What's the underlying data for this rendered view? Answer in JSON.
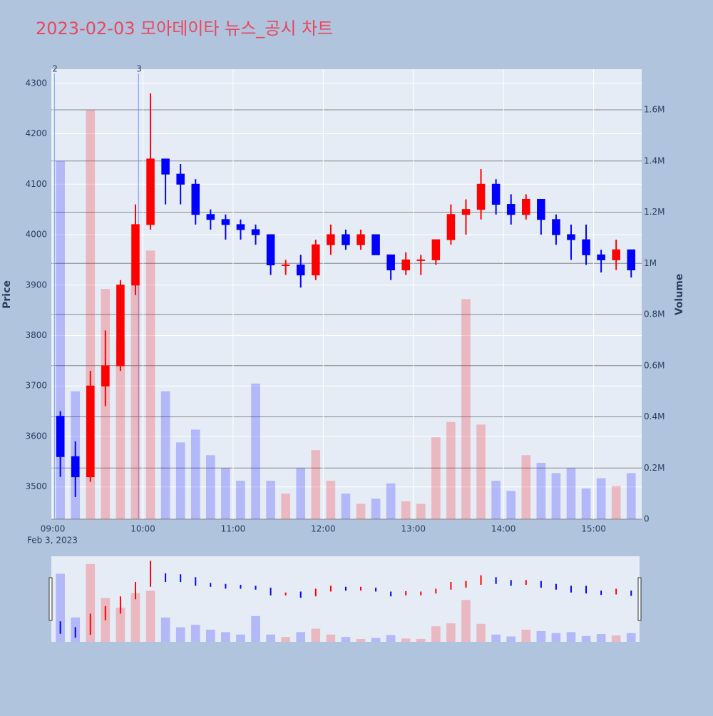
{
  "chart_data": {
    "type": "candlestick",
    "title": "2023-02-03 모아데이타 뉴스_공시 차트",
    "y_label": "Price",
    "y2_label": "Volume",
    "x_date_label": "Feb 3, 2023",
    "increasing_color": "#ff0000",
    "decreasing_color": "#0000ff",
    "x": [
      "09:00",
      "09:10",
      "09:20",
      "09:30",
      "09:40",
      "09:50",
      "10:00",
      "10:10",
      "10:20",
      "10:30",
      "10:40",
      "10:50",
      "11:00",
      "11:10",
      "11:20",
      "11:30",
      "11:40",
      "11:50",
      "12:00",
      "12:10",
      "12:20",
      "12:30",
      "12:40",
      "12:50",
      "13:00",
      "13:10",
      "13:20",
      "13:30",
      "13:40",
      "13:50",
      "14:00",
      "14:10",
      "14:20",
      "14:30",
      "14:40",
      "14:50",
      "15:00",
      "15:10",
      "15:20"
    ],
    "open": [
      3640,
      3560,
      3520,
      3700,
      3740,
      3900,
      4020,
      4150,
      4120,
      4100,
      4040,
      4030,
      4020,
      4010,
      4000,
      3940,
      3940,
      3920,
      3980,
      4000,
      3980,
      4000,
      3960,
      3930,
      3950,
      3950,
      3990,
      4040,
      4050,
      4100,
      4060,
      4040,
      4070,
      4030,
      4000,
      3990,
      3960,
      3950,
      3970
    ],
    "high": [
      3650,
      3590,
      3730,
      3810,
      3910,
      4060,
      4280,
      4150,
      4140,
      4110,
      4050,
      4040,
      4030,
      4020,
      4000,
      3950,
      3960,
      3990,
      4020,
      4010,
      4010,
      4000,
      3960,
      3965,
      3960,
      3990,
      4060,
      4070,
      4130,
      4110,
      4080,
      4080,
      4070,
      4040,
      4020,
      4020,
      3970,
      3990,
      3970
    ],
    "low": [
      3520,
      3480,
      3510,
      3660,
      3730,
      3880,
      4010,
      4060,
      4060,
      4020,
      4010,
      3990,
      3990,
      3980,
      3920,
      3920,
      3895,
      3910,
      3960,
      3970,
      3970,
      3960,
      3910,
      3920,
      3920,
      3940,
      3980,
      4000,
      4030,
      4040,
      4020,
      4030,
      4000,
      3980,
      3950,
      3940,
      3925,
      3930,
      3915
    ],
    "close": [
      3560,
      3520,
      3700,
      3740,
      3900,
      4020,
      4150,
      4120,
      4100,
      4040,
      4030,
      4020,
      4010,
      4000,
      3940,
      3940,
      3920,
      3980,
      4000,
      3980,
      4000,
      3960,
      3930,
      3950,
      3950,
      3990,
      4040,
      4050,
      4100,
      4060,
      4040,
      4070,
      4030,
      4000,
      3990,
      3960,
      3950,
      3970,
      3930
    ],
    "volume": [
      1400000,
      500000,
      1600000,
      900000,
      700000,
      1000000,
      1050000,
      500000,
      300000,
      350000,
      250000,
      200000,
      150000,
      530000,
      150000,
      100000,
      200000,
      270000,
      150000,
      100000,
      60000,
      80000,
      140000,
      70000,
      60000,
      320000,
      380000,
      860000,
      370000,
      150000,
      110000,
      250000,
      220000,
      180000,
      200000,
      120000,
      160000,
      130000,
      180000
    ],
    "xlim": [
      "08:59",
      "15:32"
    ],
    "xticks": [
      "09:00",
      "10:00",
      "11:00",
      "12:00",
      "13:00",
      "14:00",
      "15:00"
    ],
    "ylim": [
      3436,
      4328
    ],
    "yticks": [
      3500,
      3600,
      3700,
      3800,
      3900,
      4000,
      4100,
      4200,
      4300
    ],
    "y2lim": [
      0,
      1759000
    ],
    "y2ticks": [
      0,
      {
        "value": 200000,
        "label": "0.2M"
      },
      {
        "value": 400000,
        "label": "0.4M"
      },
      {
        "value": 600000,
        "label": "0.6M"
      },
      {
        "value": 800000,
        "label": "0.8M"
      },
      {
        "value": 1000000,
        "label": "1M"
      },
      {
        "value": 1200000,
        "label": "1.2M"
      },
      {
        "value": 1400000,
        "label": "1.4M"
      },
      {
        "value": 1600000,
        "label": "1.6M"
      }
    ],
    "annotations": [
      {
        "x": "09:01",
        "text": "2"
      },
      {
        "x": "09:57",
        "text": "3"
      }
    ],
    "range_slider": true
  }
}
